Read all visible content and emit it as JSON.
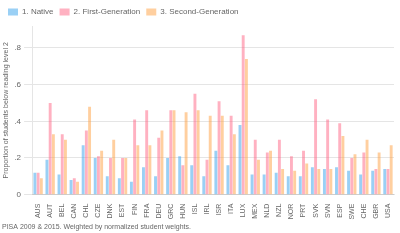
{
  "chart_data": {
    "type": "bar",
    "categories": [
      "AUS",
      "AUT",
      "BEL",
      "CAN",
      "CHL",
      "CZE",
      "DNK",
      "EST",
      "FIN",
      "FRA",
      "DEU",
      "GRC",
      "HUN",
      "ISL",
      "IRL",
      "ISR",
      "ITA",
      "LUX",
      "MEX",
      "NLD",
      "NZL",
      "NOR",
      "PRT",
      "SVK",
      "SVN",
      "ESP",
      "SWE",
      "CHE",
      "GBR",
      "USA"
    ],
    "series": [
      {
        "name": "1. Native",
        "values": [
          0.12,
          0.19,
          0.11,
          0.08,
          0.27,
          0.2,
          0.1,
          0.09,
          0.07,
          0.15,
          0.1,
          0.2,
          0.21,
          0.16,
          0.1,
          0.24,
          0.16,
          0.38,
          0.11,
          0.11,
          0.12,
          0.1,
          0.1,
          0.15,
          0.14,
          0.15,
          0.13,
          0.11,
          0.13,
          0.14
        ]
      },
      {
        "name": "2. First-Generation",
        "values": [
          0.12,
          0.5,
          0.33,
          0.09,
          0.35,
          0.21,
          0.2,
          0.2,
          0.41,
          0.46,
          0.31,
          0.46,
          0.16,
          0.55,
          0.19,
          0.51,
          0.43,
          0.87,
          0.3,
          0.23,
          0.3,
          0.21,
          0.24,
          0.52,
          0.41,
          0.39,
          0.2,
          0.23,
          0.14,
          0.14
        ]
      },
      {
        "name": "3. Second-Generation",
        "values": [
          0.09,
          0.33,
          0.3,
          0.07,
          0.48,
          0.24,
          0.3,
          0.2,
          0.27,
          0.27,
          0.35,
          0.46,
          0.45,
          0.46,
          0.43,
          0.43,
          0.33,
          0.74,
          0.19,
          0.24,
          0.14,
          0.13,
          0.17,
          0.14,
          0.14,
          0.32,
          0.22,
          0.3,
          0.23,
          0.27
        ]
      }
    ],
    "ylabel": "Proportion of students below reading level 2",
    "annotations": [
      "PISA 2009 & 2015. Weighted by normalized student weights."
    ],
    "ylim": [
      0,
      0.92
    ],
    "yticks": [
      0,
      {
        "value": 0.2,
        "label": ".2"
      },
      {
        "value": 0.4,
        "label": ".4"
      },
      {
        "value": 0.6,
        "label": ".6"
      },
      {
        "value": 0.8,
        "label": ".8"
      }
    ],
    "grid": true,
    "legend": "upper left"
  }
}
